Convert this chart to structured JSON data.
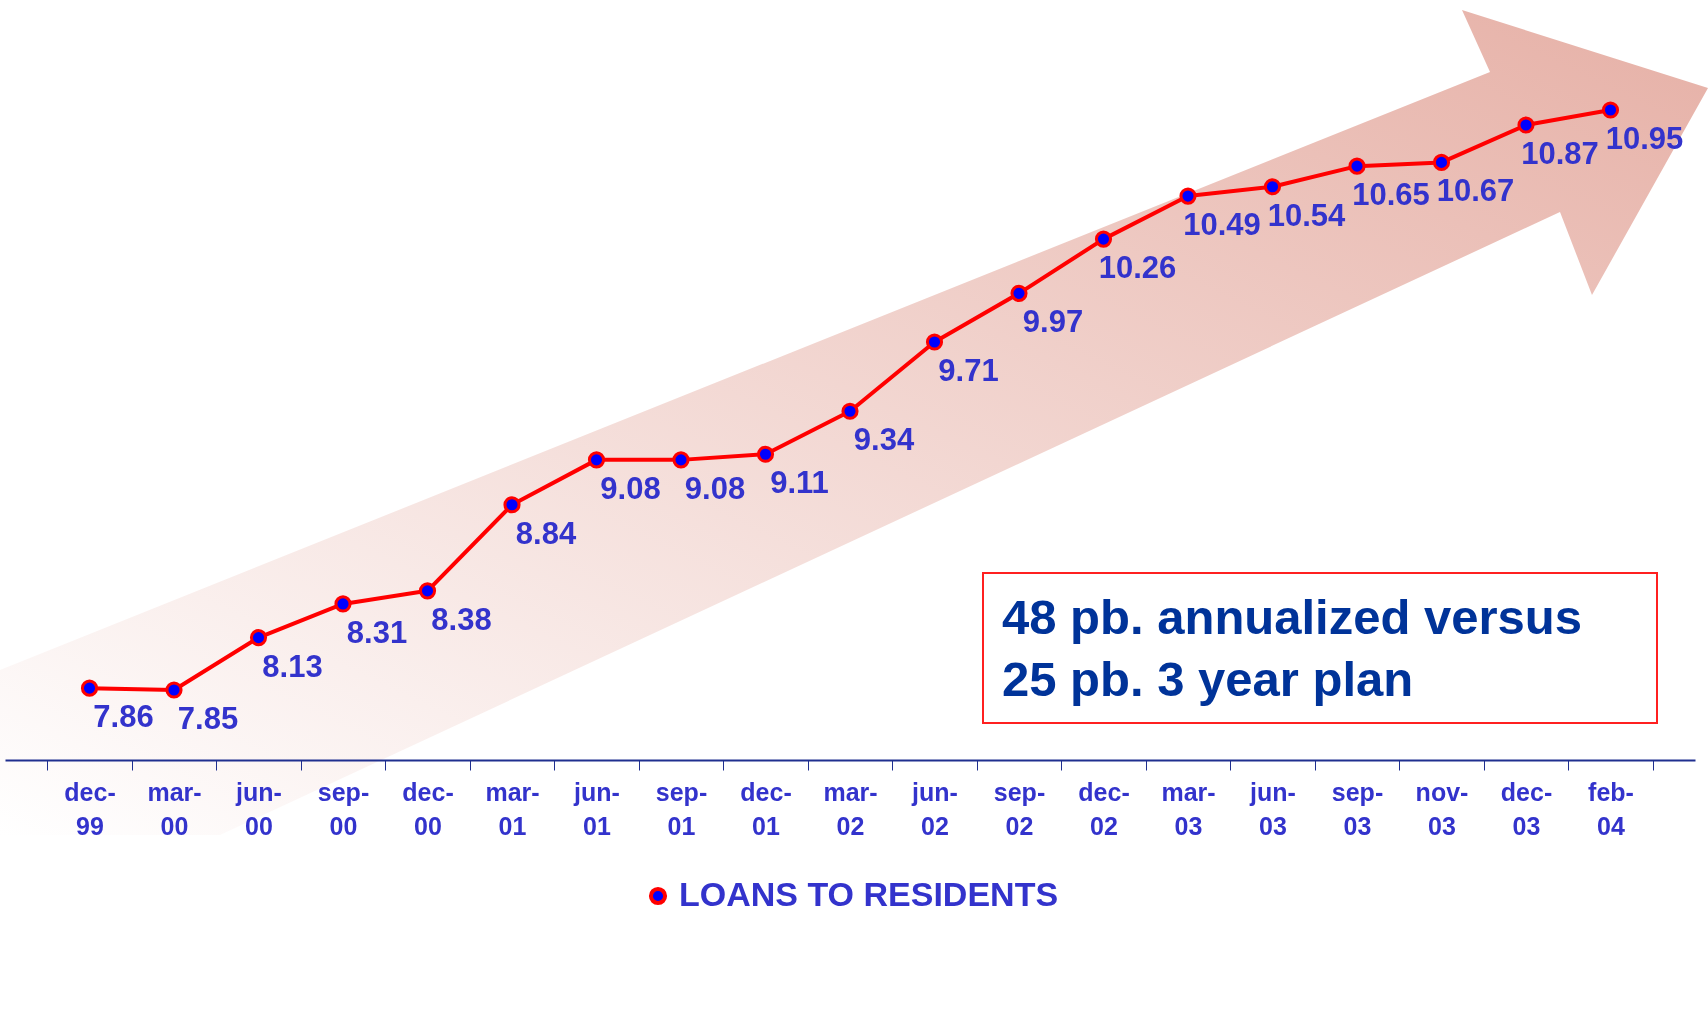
{
  "chart_data": {
    "type": "line",
    "categories": [
      "dec-99",
      "mar-00",
      "jun-00",
      "sep-00",
      "dec-00",
      "mar-01",
      "jun-01",
      "sep-01",
      "dec-01",
      "mar-02",
      "jun-02",
      "sep-02",
      "dec-02",
      "mar-03",
      "jun-03",
      "sep-03",
      "nov-03",
      "dec-03",
      "feb-04"
    ],
    "series": [
      {
        "name": "LOANS TO RESIDENTS",
        "color": "#ff0000",
        "values": [
          7.86,
          7.85,
          8.13,
          8.31,
          8.38,
          8.84,
          9.08,
          9.08,
          9.11,
          9.34,
          9.71,
          9.97,
          10.26,
          10.49,
          10.54,
          10.65,
          10.67,
          10.87,
          10.95
        ]
      }
    ],
    "data_labels": true,
    "marker": "circle",
    "legend": "bottom",
    "grid": false,
    "tick_labels": "x",
    "annotations": [
      "48 pb. annualized versus 25 pb. 3 year plan"
    ]
  }
}
